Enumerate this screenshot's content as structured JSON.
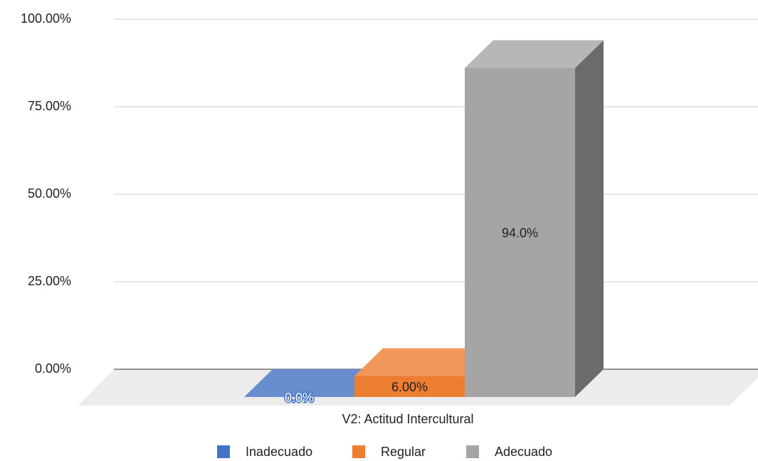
{
  "chart_data": {
    "type": "bar3d",
    "categories": [
      "V2: Actitud Intercultural"
    ],
    "series": [
      {
        "name": "Inadecuado",
        "color": "#4472c4",
        "values": [
          0
        ],
        "value_labels": [
          "0.0%"
        ]
      },
      {
        "name": "Regular",
        "color": "#ed7d31",
        "values": [
          6
        ],
        "value_labels": [
          "6.00%"
        ]
      },
      {
        "name": "Adecuado",
        "color": "#a5a5a5",
        "values": [
          94
        ],
        "value_labels": [
          "94.0%"
        ]
      }
    ],
    "ylim": [
      0,
      100
    ],
    "yticks": [
      {
        "value": 0,
        "label": "0.00%"
      },
      {
        "value": 25,
        "label": "25.00%"
      },
      {
        "value": 50,
        "label": "50.00%"
      },
      {
        "value": 75,
        "label": "75.00%"
      },
      {
        "value": 100,
        "label": "100.00%"
      }
    ],
    "grid": true,
    "legend": "bottom"
  }
}
